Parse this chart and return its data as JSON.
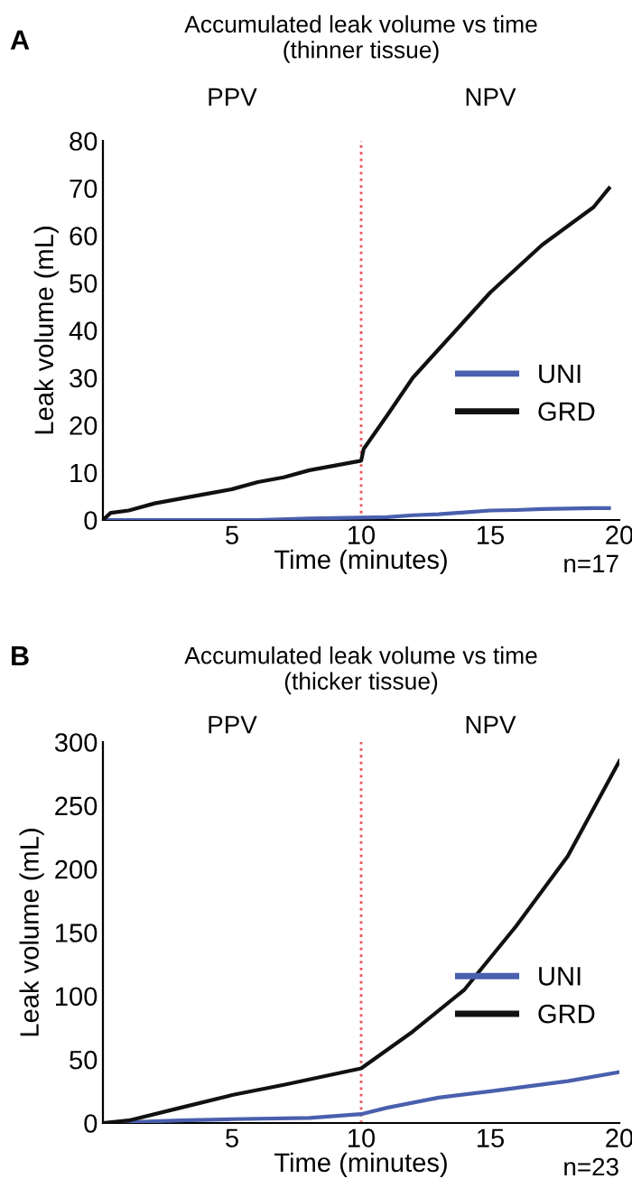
{
  "chart_data": [
    {
      "type": "line",
      "title": "Accumulated leak volume vs time\n(thinner tissue)",
      "xlabel": "Time (minutes)",
      "ylabel": "Leak volume (mL)",
      "annotations": [
        "A",
        "PPV",
        "NPV",
        "n=17"
      ],
      "xlim": [
        0,
        20
      ],
      "xticks": [
        5,
        10,
        15,
        20
      ],
      "ylim": [
        0,
        80
      ],
      "yticks": [
        0,
        10,
        20,
        30,
        40,
        50,
        60,
        70,
        80
      ],
      "series": [
        {
          "name": "UNI",
          "color": "#4a5fad",
          "x": [
            0,
            2,
            4,
            6,
            8,
            9,
            10,
            11,
            12,
            13,
            14,
            15,
            16,
            17,
            18,
            19,
            19.6
          ],
          "values": [
            0,
            0,
            0,
            0,
            0.3,
            0.4,
            0.5,
            0.6,
            1,
            1.2,
            1.6,
            2,
            2.1,
            2.3,
            2.4,
            2.5,
            2.5
          ]
        },
        {
          "name": "GRD",
          "color": "#111111",
          "x": [
            0,
            0.3,
            1,
            2,
            3,
            4,
            5,
            6,
            7,
            8,
            9,
            10,
            10.1,
            11,
            12,
            13,
            14,
            15,
            16,
            17,
            18,
            19,
            19.6
          ],
          "values": [
            0,
            1.5,
            2,
            3.5,
            4.5,
            5.5,
            6.5,
            8,
            9,
            10.5,
            11.5,
            12.5,
            15,
            22,
            30,
            36,
            42,
            48,
            53,
            58,
            62,
            66,
            70
          ]
        }
      ],
      "ref_lines": [
        {
          "axis": "x",
          "value": 10,
          "color": "#e8545c",
          "line_style": "dotted"
        }
      ],
      "legend": "right",
      "grid": false,
      "marker": "none",
      "line_style": "solid"
    },
    {
      "type": "line",
      "title": "Accumulated leak volume vs time\n(thicker tissue)",
      "xlabel": "Time (minutes)",
      "ylabel": "Leak volume (mL)",
      "annotations": [
        "B",
        "PPV",
        "NPV",
        "n=23"
      ],
      "xlim": [
        0,
        20
      ],
      "xticks": [
        5,
        10,
        15,
        20
      ],
      "ylim": [
        0,
        300
      ],
      "yticks": [
        0,
        50,
        100,
        150,
        200,
        250,
        300
      ],
      "series": [
        {
          "name": "UNI",
          "color": "#4a5fad",
          "x": [
            0,
            3,
            5,
            8,
            10,
            11,
            13,
            15,
            18,
            20
          ],
          "values": [
            0,
            2,
            3,
            4,
            7,
            12,
            20,
            25,
            33,
            40
          ]
        },
        {
          "name": "GRD",
          "color": "#111111",
          "x": [
            0,
            1,
            3,
            5,
            7,
            10,
            12,
            14,
            16,
            18,
            20
          ],
          "values": [
            0,
            2,
            12,
            22,
            30,
            43,
            72,
            105,
            155,
            210,
            285
          ]
        }
      ],
      "ref_lines": [
        {
          "axis": "x",
          "value": 10,
          "color": "#e8545c",
          "line_style": "dotted"
        }
      ],
      "legend": "right",
      "grid": false,
      "marker": "none",
      "line_style": "solid"
    }
  ]
}
